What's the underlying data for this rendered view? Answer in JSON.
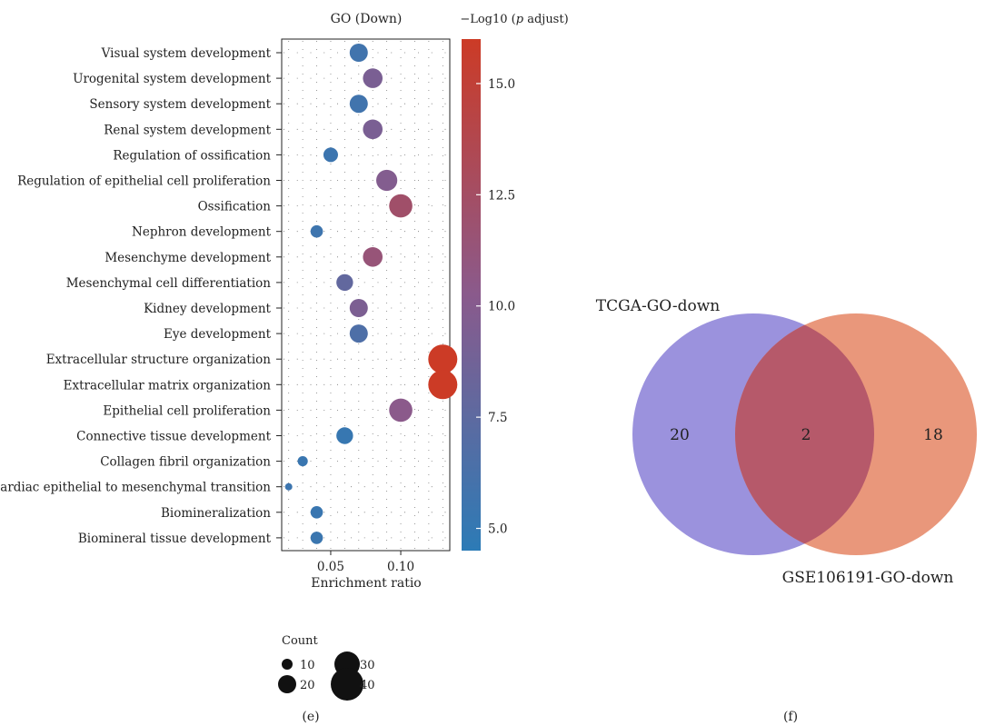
{
  "panels": {
    "e": {
      "label": "(e)",
      "chart_data": {
        "type": "scatter",
        "title": "GO (Down)",
        "xlabel": "Enrichment ratio",
        "ylabel": "",
        "xlim": [
          0.015,
          0.135
        ],
        "xticks": [
          0.05,
          0.1
        ],
        "xtick_labels": [
          "0.05",
          "0.10"
        ],
        "grid": true,
        "categories": [
          "Visual system development",
          "Urogenital system development",
          "Sensory system development",
          "Renal system development",
          "Regulation of ossification",
          "Regulation of epithelial cell proliferation",
          "Ossification",
          "Nephron development",
          "Mesenchyme development",
          "Mesenchymal cell differentiation",
          "Kidney development",
          "Eye development",
          "Extracellular structure organization",
          "Extracellular matrix organization",
          "Epithelial cell proliferation",
          "Connective tissue development",
          "Collagen fibril organization",
          "Cardiac epithelial to mesenchymal transition",
          "Biomineralization",
          "Biomineral tissue development"
        ],
        "enrichment_ratio": [
          0.07,
          0.08,
          0.07,
          0.08,
          0.05,
          0.09,
          0.1,
          0.04,
          0.08,
          0.06,
          0.07,
          0.07,
          0.13,
          0.13,
          0.1,
          0.06,
          0.03,
          0.02,
          0.04,
          0.04
        ],
        "count": [
          20,
          22,
          20,
          22,
          15,
          24,
          27,
          12,
          22,
          18,
          20,
          20,
          35,
          35,
          27,
          18,
          9,
          5,
          12,
          12
        ],
        "neg_log10_padj": [
          5.8,
          9.3,
          5.8,
          9.3,
          5.5,
          9.8,
          12.2,
          5.6,
          11.4,
          7.8,
          9.4,
          6.6,
          16.0,
          16.0,
          10.3,
          5.2,
          5.3,
          5.5,
          5.3,
          5.4
        ],
        "colorbar": {
          "title": "−Log10 (",
          "title_italic": "p",
          "title_end": " adjust)",
          "range": [
            4.5,
            16.0
          ],
          "ticks": [
            5.0,
            7.5,
            10.0,
            12.5,
            15.0
          ],
          "tick_labels": [
            "5.0",
            "7.5",
            "10.0",
            "12.5",
            "15.0"
          ],
          "colors": [
            "#2c7bb6",
            "#8a5a8c",
            "#cc3b26"
          ]
        },
        "size_legend": {
          "title": "Count",
          "values": [
            10,
            20,
            30,
            40
          ],
          "labels": [
            "10",
            "20",
            "30",
            "40"
          ]
        }
      }
    },
    "f": {
      "label": "(f)",
      "venn": {
        "sets": [
          {
            "name": "TCGA-GO-down",
            "only": "20",
            "color": "#9b92dd"
          },
          {
            "name": "GSE106191-GO-down",
            "only": "18",
            "color": "#e9977b"
          }
        ],
        "intersection": "2",
        "intersection_color": "#b6596a"
      }
    }
  }
}
